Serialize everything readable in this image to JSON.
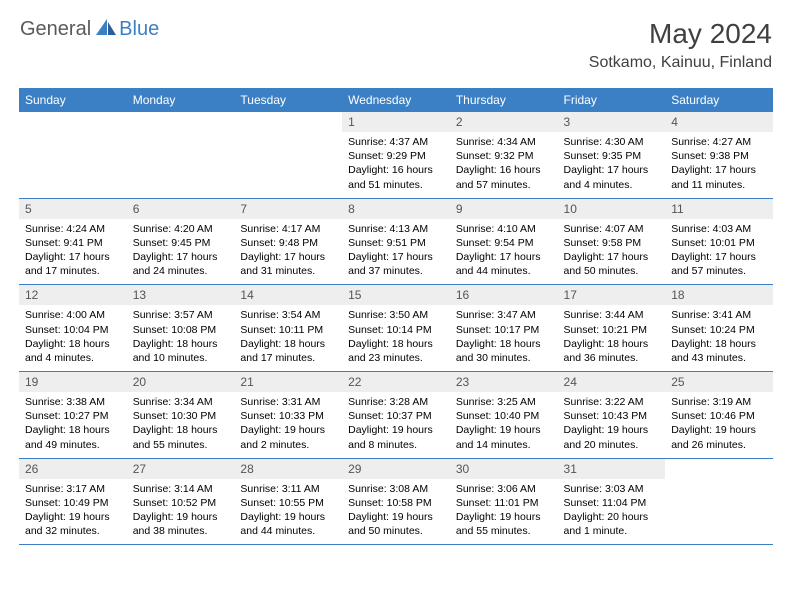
{
  "logo": {
    "general": "General",
    "blue": "Blue"
  },
  "header": {
    "title": "May 2024",
    "location": "Sotkamo, Kainuu, Finland"
  },
  "colors": {
    "header_bg": "#3b7fc4",
    "header_text": "#ffffff",
    "daynum_bg": "#eeeeee",
    "daynum_text": "#555555",
    "divider": "#3b7fc4",
    "page_bg": "#ffffff",
    "title_text": "#404040",
    "logo_general": "#5a5a5a",
    "logo_blue": "#3b7fc4"
  },
  "weekdays": [
    "Sunday",
    "Monday",
    "Tuesday",
    "Wednesday",
    "Thursday",
    "Friday",
    "Saturday"
  ],
  "weeks": [
    [
      null,
      null,
      null,
      {
        "n": "1",
        "sr": "4:37 AM",
        "ss": "9:29 PM",
        "dl": "16 hours and 51 minutes."
      },
      {
        "n": "2",
        "sr": "4:34 AM",
        "ss": "9:32 PM",
        "dl": "16 hours and 57 minutes."
      },
      {
        "n": "3",
        "sr": "4:30 AM",
        "ss": "9:35 PM",
        "dl": "17 hours and 4 minutes."
      },
      {
        "n": "4",
        "sr": "4:27 AM",
        "ss": "9:38 PM",
        "dl": "17 hours and 11 minutes."
      }
    ],
    [
      {
        "n": "5",
        "sr": "4:24 AM",
        "ss": "9:41 PM",
        "dl": "17 hours and 17 minutes."
      },
      {
        "n": "6",
        "sr": "4:20 AM",
        "ss": "9:45 PM",
        "dl": "17 hours and 24 minutes."
      },
      {
        "n": "7",
        "sr": "4:17 AM",
        "ss": "9:48 PM",
        "dl": "17 hours and 31 minutes."
      },
      {
        "n": "8",
        "sr": "4:13 AM",
        "ss": "9:51 PM",
        "dl": "17 hours and 37 minutes."
      },
      {
        "n": "9",
        "sr": "4:10 AM",
        "ss": "9:54 PM",
        "dl": "17 hours and 44 minutes."
      },
      {
        "n": "10",
        "sr": "4:07 AM",
        "ss": "9:58 PM",
        "dl": "17 hours and 50 minutes."
      },
      {
        "n": "11",
        "sr": "4:03 AM",
        "ss": "10:01 PM",
        "dl": "17 hours and 57 minutes."
      }
    ],
    [
      {
        "n": "12",
        "sr": "4:00 AM",
        "ss": "10:04 PM",
        "dl": "18 hours and 4 minutes."
      },
      {
        "n": "13",
        "sr": "3:57 AM",
        "ss": "10:08 PM",
        "dl": "18 hours and 10 minutes."
      },
      {
        "n": "14",
        "sr": "3:54 AM",
        "ss": "10:11 PM",
        "dl": "18 hours and 17 minutes."
      },
      {
        "n": "15",
        "sr": "3:50 AM",
        "ss": "10:14 PM",
        "dl": "18 hours and 23 minutes."
      },
      {
        "n": "16",
        "sr": "3:47 AM",
        "ss": "10:17 PM",
        "dl": "18 hours and 30 minutes."
      },
      {
        "n": "17",
        "sr": "3:44 AM",
        "ss": "10:21 PM",
        "dl": "18 hours and 36 minutes."
      },
      {
        "n": "18",
        "sr": "3:41 AM",
        "ss": "10:24 PM",
        "dl": "18 hours and 43 minutes."
      }
    ],
    [
      {
        "n": "19",
        "sr": "3:38 AM",
        "ss": "10:27 PM",
        "dl": "18 hours and 49 minutes."
      },
      {
        "n": "20",
        "sr": "3:34 AM",
        "ss": "10:30 PM",
        "dl": "18 hours and 55 minutes."
      },
      {
        "n": "21",
        "sr": "3:31 AM",
        "ss": "10:33 PM",
        "dl": "19 hours and 2 minutes."
      },
      {
        "n": "22",
        "sr": "3:28 AM",
        "ss": "10:37 PM",
        "dl": "19 hours and 8 minutes."
      },
      {
        "n": "23",
        "sr": "3:25 AM",
        "ss": "10:40 PM",
        "dl": "19 hours and 14 minutes."
      },
      {
        "n": "24",
        "sr": "3:22 AM",
        "ss": "10:43 PM",
        "dl": "19 hours and 20 minutes."
      },
      {
        "n": "25",
        "sr": "3:19 AM",
        "ss": "10:46 PM",
        "dl": "19 hours and 26 minutes."
      }
    ],
    [
      {
        "n": "26",
        "sr": "3:17 AM",
        "ss": "10:49 PM",
        "dl": "19 hours and 32 minutes."
      },
      {
        "n": "27",
        "sr": "3:14 AM",
        "ss": "10:52 PM",
        "dl": "19 hours and 38 minutes."
      },
      {
        "n": "28",
        "sr": "3:11 AM",
        "ss": "10:55 PM",
        "dl": "19 hours and 44 minutes."
      },
      {
        "n": "29",
        "sr": "3:08 AM",
        "ss": "10:58 PM",
        "dl": "19 hours and 50 minutes."
      },
      {
        "n": "30",
        "sr": "3:06 AM",
        "ss": "11:01 PM",
        "dl": "19 hours and 55 minutes."
      },
      {
        "n": "31",
        "sr": "3:03 AM",
        "ss": "11:04 PM",
        "dl": "20 hours and 1 minute."
      },
      null
    ]
  ],
  "labels": {
    "sunrise": "Sunrise:",
    "sunset": "Sunset:",
    "daylight": "Daylight:"
  }
}
